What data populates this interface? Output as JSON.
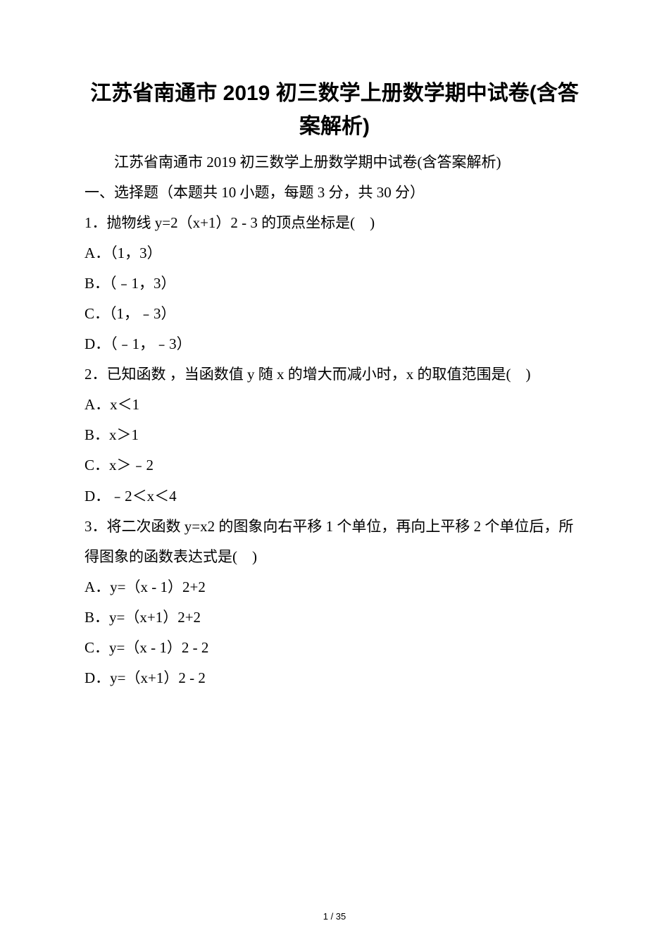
{
  "title_line1": "江苏省南通市 2019 初三数学上册数学期中试卷(含答案解析)",
  "subtitle": "江苏省南通市 2019 初三数学上册数学期中试卷(含答案解析)",
  "section_heading": "一、选择题（本题共 10 小题，每题 3 分，共 30 分）",
  "q1": {
    "stem": "1．抛物线 y=2（x+1）2 - 3 的顶点坐标是(　)",
    "a": "A．（1，3）",
    "b": "B．（﹣1，3）",
    "c": "C．（1，﹣3）",
    "d": "D．（﹣1，﹣3）"
  },
  "q2": {
    "stem": "2．已知函数 ，当函数值 y 随 x 的增大而减小时，x 的取值范围是(　)",
    "a": "A．x＜1",
    "b": "B．x＞1",
    "c": "C．x＞﹣2",
    "d": "D．﹣2＜x＜4"
  },
  "q3": {
    "stem": "3．将二次函数 y=x2 的图象向右平移 1 个单位，再向上平移 2 个单位后，所得图象的函数表达式是(　)",
    "a": "A．y=（x - 1）2+2",
    "b": "B．y=（x+1）2+2",
    "c": "C．y=（x - 1）2 - 2",
    "d": "D．y=（x+1）2 - 2"
  },
  "footer": "1 / 35",
  "colors": {
    "text": "#000000",
    "background": "#ffffff"
  },
  "fonts": {
    "title_family": "SimHei",
    "body_family": "SimSun",
    "title_size_pt": 22,
    "body_size_pt": 16
  }
}
